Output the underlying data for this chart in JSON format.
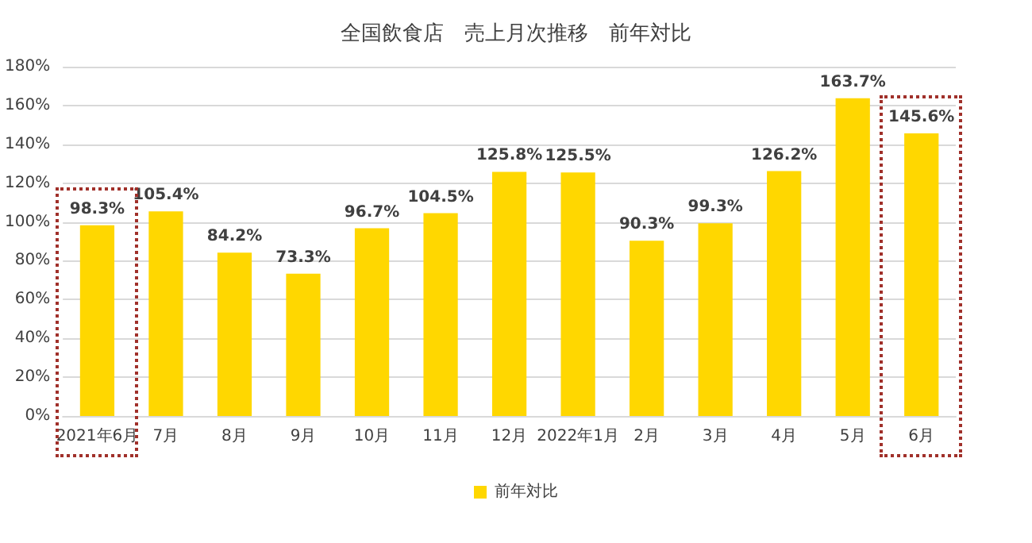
{
  "chart_data": {
    "type": "bar",
    "title": "全国飲食店　売上月次推移　前年対比",
    "categories": [
      "2021年6月",
      "7月",
      "8月",
      "9月",
      "10月",
      "11月",
      "12月",
      "2022年1月",
      "2月",
      "3月",
      "4月",
      "5月",
      "6月"
    ],
    "series": [
      {
        "name": "前年対比",
        "color": "#ffd700",
        "values": [
          98.3,
          105.4,
          84.2,
          73.3,
          96.7,
          104.5,
          125.8,
          125.5,
          90.3,
          99.3,
          126.2,
          163.7,
          145.6
        ],
        "value_labels": [
          "98.3%",
          "105.4%",
          "84.2%",
          "73.3%",
          "96.7%",
          "104.5%",
          "125.8%",
          "125.5%",
          "90.3%",
          "99.3%",
          "126.2%",
          "163.7%",
          "145.6%"
        ]
      }
    ],
    "ylim": [
      0,
      180
    ],
    "yticks": [
      {
        "value": 0,
        "label": "0%"
      },
      {
        "value": 20,
        "label": "20%"
      },
      {
        "value": 40,
        "label": "40%"
      },
      {
        "value": 60,
        "label": "60%"
      },
      {
        "value": 80,
        "label": "80%"
      },
      {
        "value": 100,
        "label": "100%"
      },
      {
        "value": 120,
        "label": "120%"
      },
      {
        "value": 140,
        "label": "140%"
      },
      {
        "value": 160,
        "label": "160%"
      },
      {
        "value": 180,
        "label": "180%"
      }
    ],
    "grid": "y",
    "legend": "bottom"
  }
}
